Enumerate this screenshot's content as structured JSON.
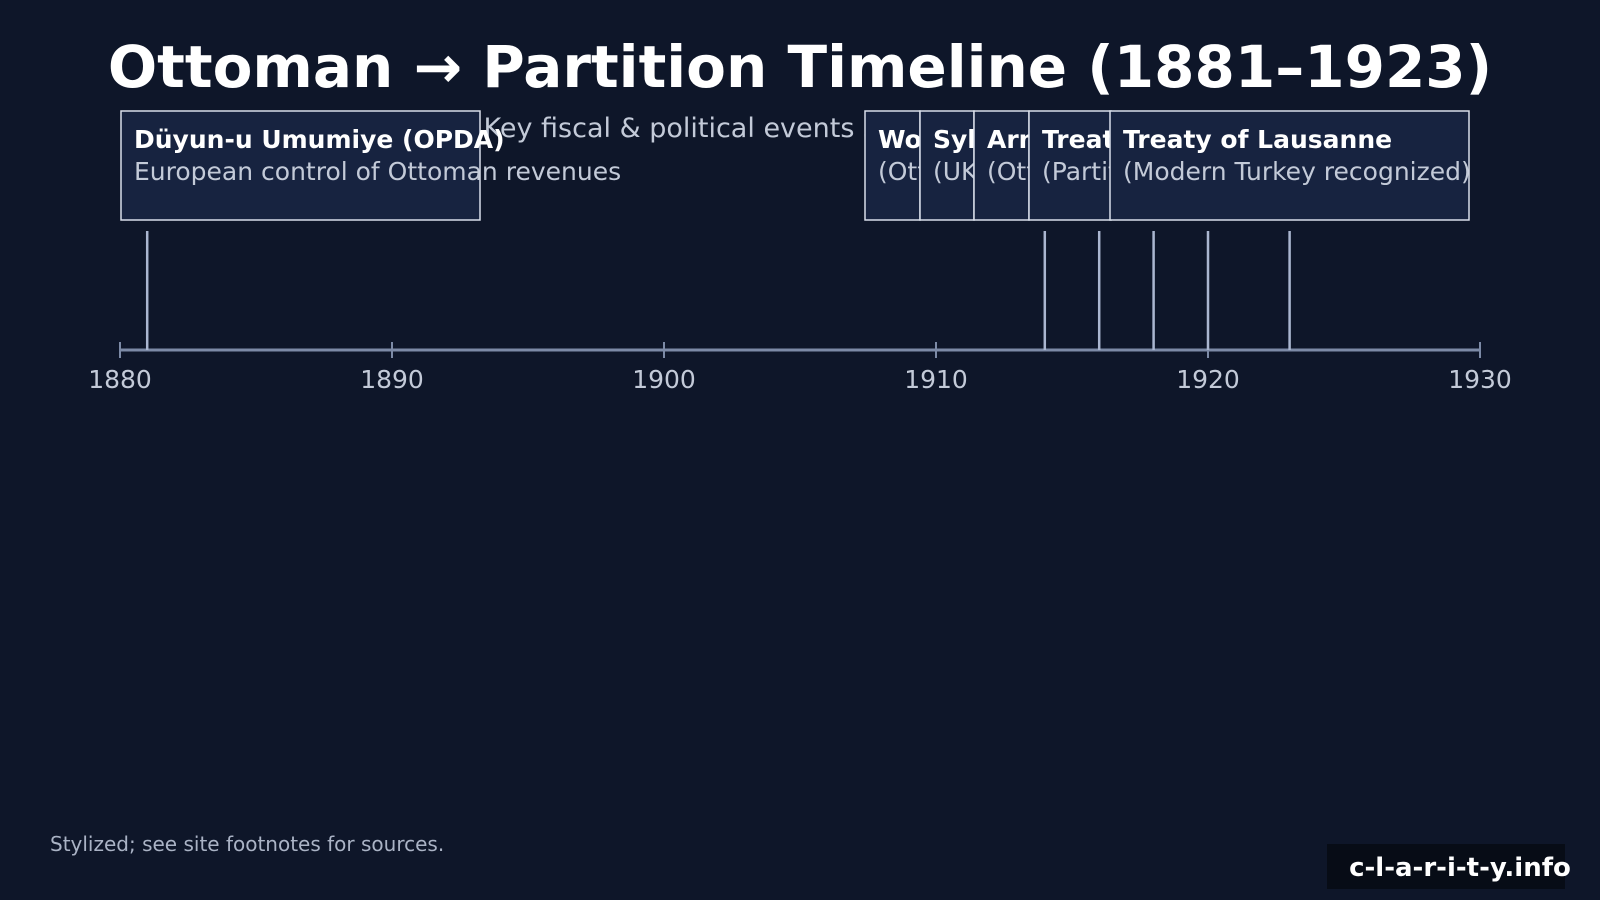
{
  "chart_data": {
    "type": "timeline",
    "title": "Ottoman → Partition Timeline (1881–1923)",
    "subtitle": "Key fiscal & political events shaping the region",
    "x_range": [
      1880,
      1930
    ],
    "ticks": [
      1880,
      1890,
      1900,
      1910,
      1920,
      1930
    ],
    "events": [
      {
        "year": 1881,
        "title": "Düyun-u Umumiye (OPDA)",
        "desc": "European control of Ottoman revenues"
      },
      {
        "year": 1914,
        "title": "World War I",
        "desc": "(Ottomans enter the war)"
      },
      {
        "year": 1916,
        "title": "Sykes–Picot Agreement",
        "desc": "(UK–France secret partition)"
      },
      {
        "year": 1918,
        "title": "Armistice of Mudros",
        "desc": "(Ottoman surrender)"
      },
      {
        "year": 1920,
        "title": "Treaty of Sèvres",
        "desc": "(Partition imposed)"
      },
      {
        "year": 1923,
        "title": "Treaty of Lausanne",
        "desc": "(Modern Turkey recognized)"
      }
    ]
  },
  "footer": {
    "note": "Stylized; see site footnotes for sources.",
    "brand": "c-l-a-r-i-t-y.info"
  },
  "colors": {
    "background": "#0e1629",
    "box_fill": "#172340",
    "box_stroke": "#d8deea",
    "axis": "#7c8aa6",
    "event_line": "#aab6d0",
    "brand_bg": "#070c16"
  }
}
